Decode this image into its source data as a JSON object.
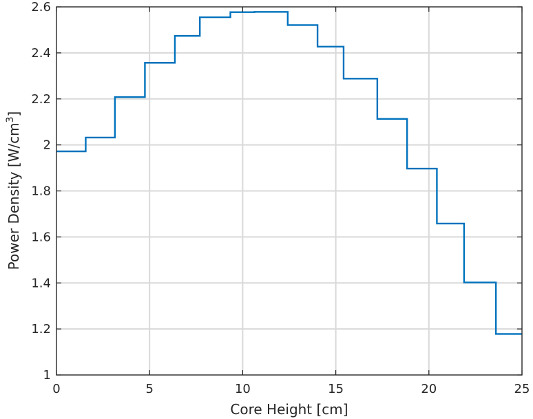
{
  "chart_data": {
    "type": "line",
    "xlabel": "Core Height [cm]",
    "ylabel_main": "Power Density [W/cm",
    "ylabel_sup": "3",
    "ylabel_end": "]",
    "xlim": [
      0,
      25
    ],
    "ylim": [
      1,
      2.6
    ],
    "xticks": [
      0,
      5,
      10,
      15,
      20,
      25
    ],
    "yticks": [
      1,
      1.2,
      1.4,
      1.6,
      1.8,
      2,
      2.2,
      2.4,
      2.6
    ],
    "xtick_labels": [
      "0",
      "5",
      "10",
      "15",
      "20",
      "25"
    ],
    "ytick_labels": [
      "1",
      "1.2",
      "1.4",
      "1.6",
      "1.8",
      "2",
      "2.2",
      "2.4",
      "2.6"
    ],
    "grid": true,
    "line_color": "#0072bd",
    "series": [
      {
        "step_edges": [
          0,
          1.57,
          3.14,
          4.75,
          6.36,
          7.7,
          9.34,
          10.63,
          12.42,
          14.02,
          15.42,
          17.23,
          18.83,
          20.43,
          21.89,
          23.6,
          25
        ],
        "values": [
          1.972,
          2.032,
          2.208,
          2.357,
          2.474,
          2.555,
          2.577,
          2.578,
          2.521,
          2.427,
          2.288,
          2.113,
          1.897,
          1.658,
          1.402,
          1.178
        ]
      }
    ]
  }
}
